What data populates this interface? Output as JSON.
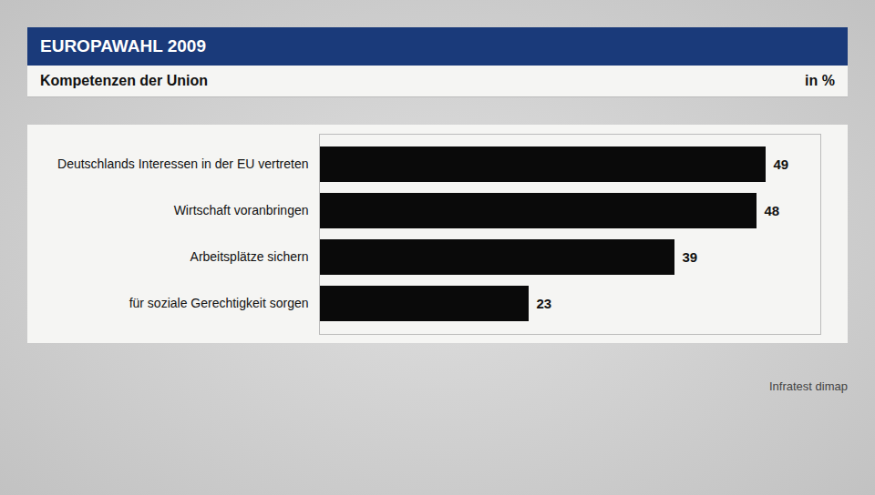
{
  "chart_data": {
    "type": "bar",
    "orientation": "horizontal",
    "title": "EUROPAWAHL 2009",
    "subtitle": "Kompetenzen der Union",
    "xlabel": "in %",
    "caption": "Infratest dimap",
    "categories": [
      "Deutschlands Interessen in der EU vertreten",
      "Wirtschaft voranbringen",
      "Arbeitsplätze sichern",
      "für soziale Gerechtigkeit sorgen"
    ],
    "values": [
      49,
      48,
      39,
      23
    ],
    "color": "#0a0a0a",
    "xlim": [
      0,
      55
    ],
    "data_labels": true,
    "tick_labels": "y",
    "grid": false
  }
}
